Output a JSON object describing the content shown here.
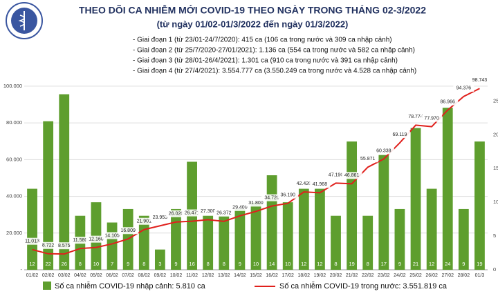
{
  "chart_data": {
    "type": "bar-line",
    "title": "THEO DÕI CA NHIỄM MỚI COVID-19 THEO NGÀY TRONG THÁNG 02-3/2022",
    "subtitle": "(từ ngày 01/02-01/3/2022 đến ngày 01/3/2022)",
    "notes": [
      "- Giai đoạn 1 (từ 23/01-24/7/2020): 415 ca (106 ca trong nước và 309 ca nhập cảnh)",
      "- Giai đoạn 2 (từ 25/7/2020-27/01/2021): 1.136 ca (554 ca trong nước và 582 ca nhập cảnh)",
      "- Giai đoạn 3 (từ 28/01-26/4/2021): 1.301 ca (910 ca trong nước và 391 ca nhập cảnh)",
      "- Giai đoạn 4 (từ 27/4/2021): 3.554.777 ca (3.550.249 ca trong nước và 4.528 ca nhập cảnh)"
    ],
    "categories": [
      "01/02",
      "02/02",
      "03/02",
      "04/02",
      "05/02",
      "06/02",
      "07/02",
      "08/02",
      "09/02",
      "10/02",
      "11/02",
      "12/02",
      "13/02",
      "14/02",
      "15/02",
      "16/02",
      "17/02",
      "18/02",
      "19/02",
      "20/02",
      "21/02",
      "22/02",
      "23/02",
      "24/02",
      "25/02",
      "26/02",
      "27/02",
      "28/02",
      "01/3"
    ],
    "series": [
      {
        "name": "Số ca nhiễm COVID-19 nhập cảnh: 5.810 ca",
        "color": "#5e9e2e",
        "axis": "y2",
        "values": [
          12,
          22,
          26,
          8,
          10,
          7,
          9,
          8,
          3,
          9,
          16,
          8,
          8,
          9,
          10,
          14,
          10,
          12,
          12,
          8,
          19,
          8,
          17,
          9,
          21,
          12,
          24,
          9,
          19
        ]
      },
      {
        "name": "Số ca nhiễm COVID-19 trong nước: 3.551.819 ca",
        "color": "#e0201c",
        "values": [
          11013,
          8722,
          8575,
          11580,
          12160,
          14105,
          16809,
          21901,
          23953,
          26020,
          26471,
          27300,
          26372,
          29400,
          31800,
          34720,
          36190,
          42420,
          41968,
          47190,
          46861,
          55871,
          60338,
          69119,
          78774,
          77970,
          86966,
          94376,
          98743
        ],
        "value_labels": [
          "11.013",
          "8.722",
          "8.575",
          "11.580",
          "12.160",
          "14.105",
          "16.809",
          "21.901",
          "23.953",
          "26.020",
          "26.471",
          "27.300",
          "26.372",
          "29.400",
          "31.800",
          "34.720",
          "36.190",
          "42.420",
          "41.968",
          "47.190",
          "46.861",
          "55.871",
          "60.338",
          "69.119",
          "78.774",
          "77.970",
          "86.966",
          "94.376",
          "98.743"
        ]
      }
    ],
    "ylim": [
      0,
      102600
    ],
    "yticks": [
      {
        "value": 0,
        "label": "-"
      },
      {
        "value": 20000,
        "label": "20.000"
      },
      {
        "value": 40000,
        "label": "40.000"
      },
      {
        "value": 60000,
        "label": "60.000"
      },
      {
        "value": 80000,
        "label": "80.000"
      },
      {
        "value": 100000,
        "label": "100.000"
      }
    ],
    "y2lim": [
      0,
      27.9
    ],
    "y2ticks": [
      0,
      5,
      10,
      15,
      20,
      25
    ],
    "grid": true
  }
}
